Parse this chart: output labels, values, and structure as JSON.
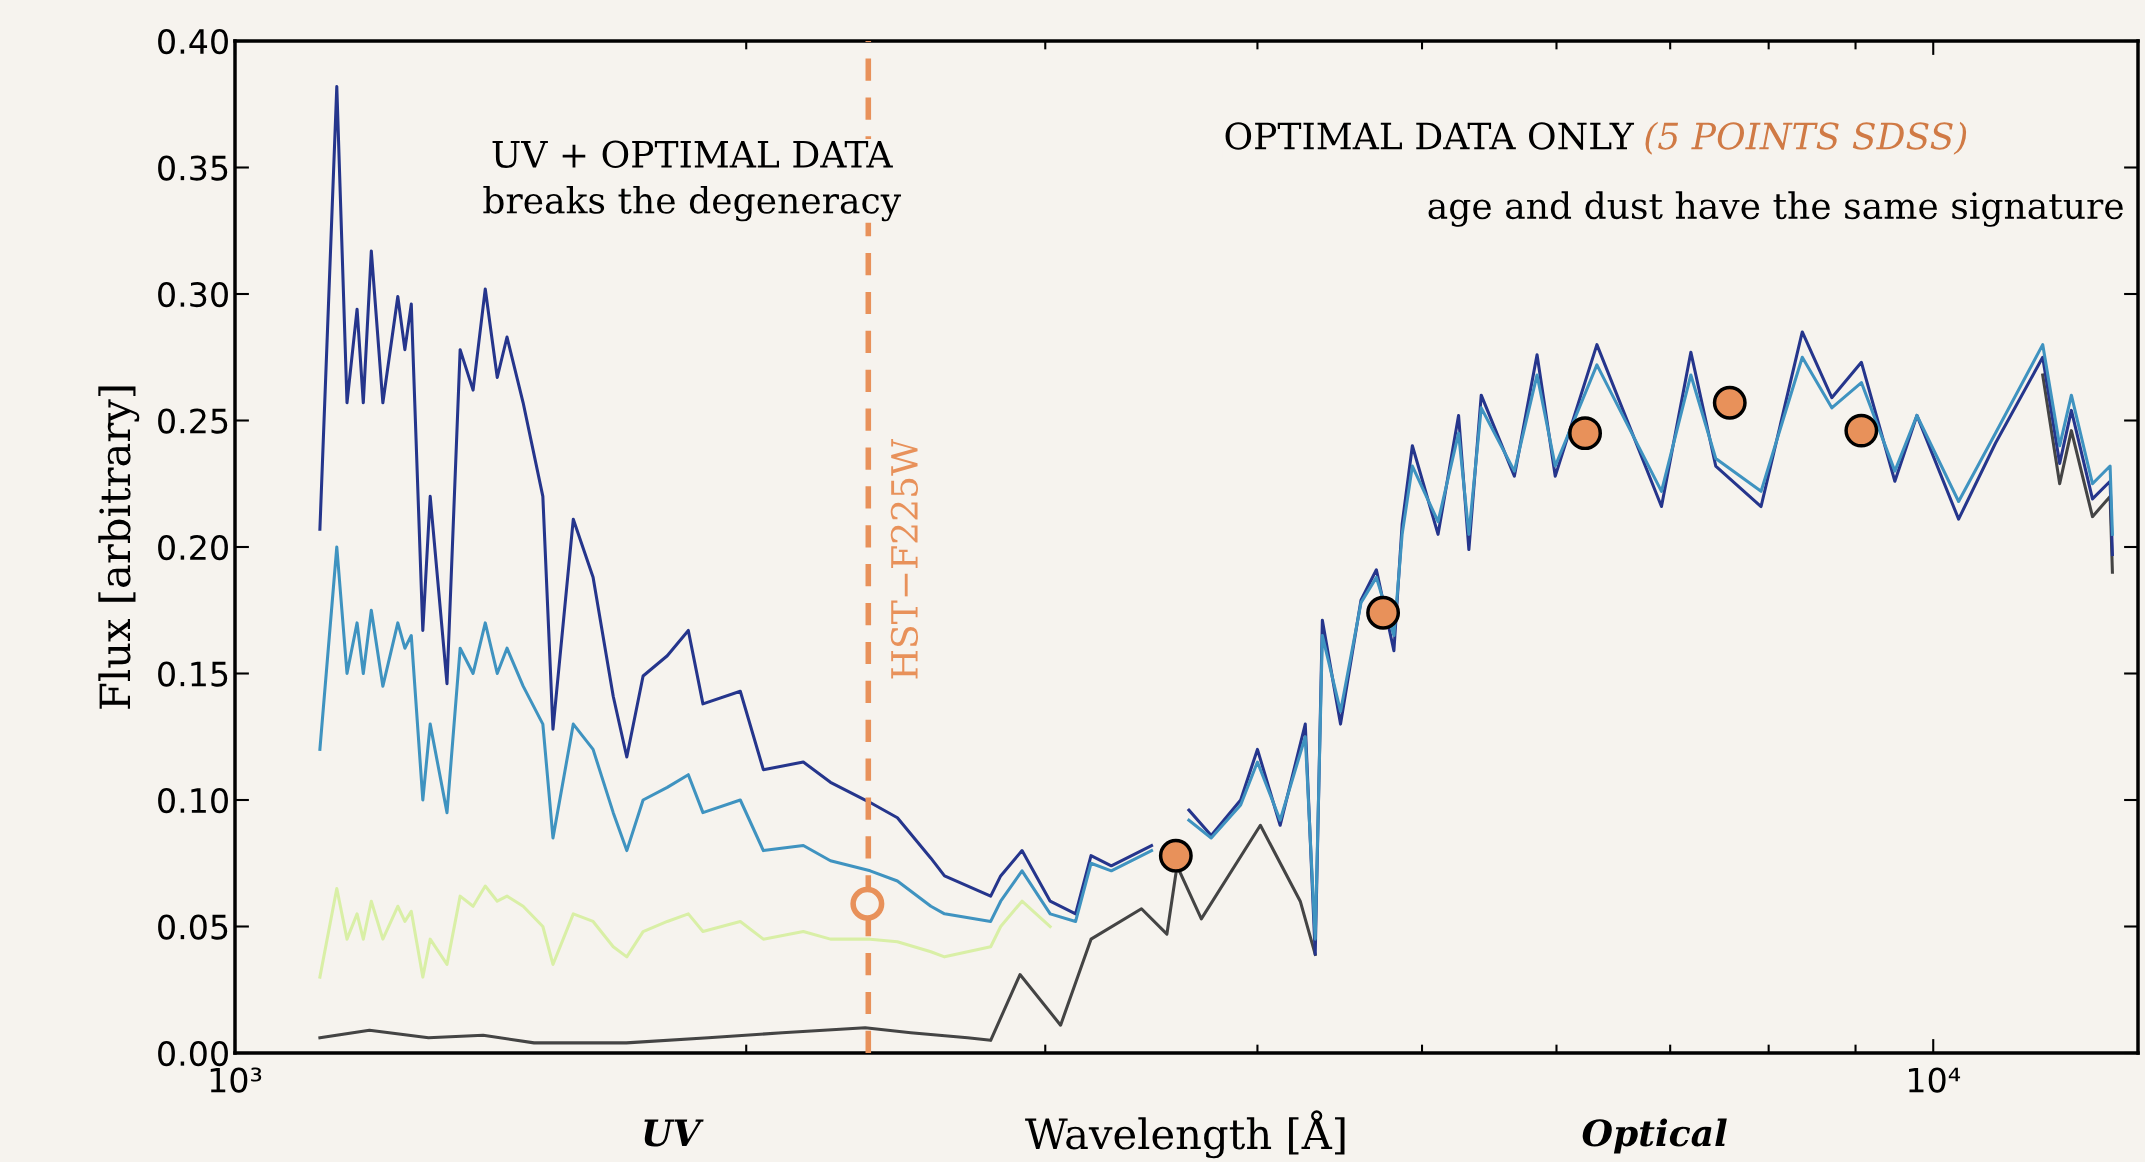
{
  "chart_data": {
    "type": "line",
    "xlabel": "Wavelength [Å]",
    "ylabel": "Flux [arbitrary]",
    "log": "x",
    "grid": false,
    "legend": false,
    "marker": "none",
    "line_style": "solid",
    "xlim": [
      1000,
      13200
    ],
    "xticks": [
      {
        "value": 1000,
        "label": "10³"
      },
      {
        "value": 10000,
        "label": "10⁴"
      }
    ],
    "ylim": [
      0,
      0.4
    ],
    "yticks": [
      {
        "value": 0,
        "label": "0.00"
      },
      {
        "value": 0.05,
        "label": "0.05"
      },
      {
        "value": 0.1,
        "label": "0.10"
      },
      {
        "value": 0.15,
        "label": "0.15"
      },
      {
        "value": 0.2,
        "label": "0.20"
      },
      {
        "value": 0.25,
        "label": "0.25"
      },
      {
        "value": 0.3,
        "label": "0.30"
      },
      {
        "value": 0.35,
        "label": "0.35"
      },
      {
        "value": 0.4,
        "label": "0.40"
      }
    ],
    "ref_lines": [
      {
        "axis": "x",
        "value": 2360,
        "label": "HST−F225W",
        "color": "#e8915a",
        "line_style": "dashed"
      }
    ],
    "annotations": [
      "UV + OPTIMAL DATA\nbreaks the degeneracy",
      "OPTIMAL DATA ONLY",
      "(5 POINTS SDSS)",
      "age and dust have the same signature",
      "UV",
      "Optical"
    ],
    "series": [
      {
        "color": "#d9efa6",
        "x": [
          1122,
          1148,
          1164,
          1180,
          1190,
          1203,
          1222,
          1247,
          1259,
          1270,
          1290,
          1303,
          1333,
          1357,
          1381,
          1404,
          1427,
          1446,
          1478,
          1518,
          1539,
          1582,
          1625,
          1670,
          1701,
          1739,
          1797,
          1849,
          1886,
          1984,
          2047,
          2161,
          2242,
          2366,
          2455,
          2569,
          2617,
          2786,
          2824,
          2907,
          3020
        ],
        "values": [
          0.03,
          0.065,
          0.045,
          0.055,
          0.045,
          0.06,
          0.045,
          0.058,
          0.052,
          0.056,
          0.03,
          0.045,
          0.035,
          0.062,
          0.058,
          0.066,
          0.06,
          0.062,
          0.058,
          0.05,
          0.035,
          0.055,
          0.052,
          0.042,
          0.038,
          0.048,
          0.052,
          0.055,
          0.048,
          0.052,
          0.045,
          0.048,
          0.045,
          0.045,
          0.044,
          0.04,
          0.038,
          0.042,
          0.05,
          0.06,
          0.05
        ]
      },
      {
        "color": "#444444",
        "x": [
          1122,
          1200,
          1300,
          1400,
          1500,
          1700,
          1900,
          2100,
          2350,
          2500,
          2700,
          2786,
          2899,
          3063,
          3192,
          3418,
          3538,
          3587,
          3707,
          4016,
          4239,
          4326,
          4400,
          11600,
          11870,
          12060,
          12410,
          12710,
          12750
        ],
        "values": [
          0.006,
          0.009,
          0.006,
          0.007,
          0.004,
          0.004,
          0.006,
          0.008,
          0.01,
          0.008,
          0.006,
          0.005,
          0.031,
          0.011,
          0.045,
          0.057,
          0.047,
          0.074,
          0.053,
          0.09,
          0.06,
          0.039,
          null,
          0.268,
          0.225,
          0.246,
          0.212,
          0.22,
          0.19
        ]
      },
      {
        "color": "#25358c",
        "x": [
          1122,
          1148,
          1164,
          1180,
          1190,
          1203,
          1222,
          1247,
          1259,
          1270,
          1290,
          1303,
          1333,
          1357,
          1381,
          1404,
          1427,
          1446,
          1478,
          1518,
          1539,
          1582,
          1625,
          1670,
          1701,
          1739,
          1797,
          1849,
          1886,
          1984,
          2047,
          2161,
          2242,
          2366,
          2455,
          2569,
          2617,
          2786,
          2824,
          2907,
          3020,
          3126,
          3192,
          3281,
          3465,
          3562,
          3645,
          3757,
          3910,
          4000,
          4125,
          4268,
          4326,
          4368,
          4477,
          4603,
          4700,
          4813,
          4867,
          4935,
          5110,
          5254,
          5328,
          5418,
          5667,
          5844,
          5990,
          6338,
          6918,
          7199,
          7446,
          7918,
          8373,
          8715,
          9072,
          9493,
          9781,
          10350,
          10880,
          11600,
          11870,
          12060,
          12410,
          12710,
          12750
        ],
        "values": [
          0.207,
          0.382,
          0.257,
          0.294,
          0.257,
          0.317,
          0.257,
          0.299,
          0.278,
          0.296,
          0.167,
          0.22,
          0.146,
          0.278,
          0.262,
          0.302,
          0.267,
          0.283,
          0.257,
          0.22,
          0.128,
          0.211,
          0.188,
          0.141,
          0.117,
          0.149,
          0.157,
          0.167,
          0.138,
          0.143,
          0.112,
          0.115,
          0.107,
          0.099,
          0.093,
          0.077,
          0.07,
          0.062,
          0.07,
          0.08,
          0.06,
          0.055,
          0.078,
          0.074,
          0.082,
          null,
          0.096,
          0.086,
          0.1,
          0.12,
          0.09,
          0.13,
          0.039,
          0.171,
          0.13,
          0.179,
          0.191,
          0.159,
          0.209,
          0.24,
          0.205,
          0.252,
          0.199,
          0.26,
          0.228,
          0.276,
          0.228,
          0.28,
          0.216,
          0.277,
          0.232,
          0.216,
          0.285,
          0.259,
          0.273,
          0.226,
          0.252,
          0.211,
          0.241,
          0.275,
          0.233,
          0.254,
          0.219,
          0.226,
          0.197
        ]
      },
      {
        "color": "#3f93c0",
        "x": [
          1122,
          1148,
          1164,
          1180,
          1190,
          1203,
          1222,
          1247,
          1259,
          1270,
          1290,
          1303,
          1333,
          1357,
          1381,
          1404,
          1427,
          1446,
          1478,
          1518,
          1539,
          1582,
          1625,
          1670,
          1701,
          1739,
          1797,
          1849,
          1886,
          1984,
          2047,
          2161,
          2242,
          2366,
          2455,
          2569,
          2617,
          2786,
          2824,
          2907,
          3020,
          3126,
          3192,
          3281,
          3465,
          3562,
          3645,
          3757,
          3910,
          4000,
          4125,
          4268,
          4326,
          4368,
          4477,
          4603,
          4700,
          4813,
          4867,
          4935,
          5110,
          5254,
          5328,
          5418,
          5667,
          5844,
          5990,
          6338,
          6918,
          7199,
          7446,
          7918,
          8373,
          8715,
          9072,
          9493,
          9781,
          10350,
          10880,
          11600,
          11870,
          12060,
          12410,
          12710,
          12750
        ],
        "values": [
          0.12,
          0.2,
          0.15,
          0.17,
          0.15,
          0.175,
          0.145,
          0.17,
          0.16,
          0.165,
          0.1,
          0.13,
          0.095,
          0.16,
          0.15,
          0.17,
          0.15,
          0.16,
          0.145,
          0.13,
          0.085,
          0.13,
          0.12,
          0.095,
          0.08,
          0.1,
          0.105,
          0.11,
          0.095,
          0.1,
          0.08,
          0.082,
          0.076,
          0.072,
          0.068,
          0.058,
          0.055,
          0.052,
          0.06,
          0.072,
          0.055,
          0.052,
          0.075,
          0.072,
          0.08,
          null,
          0.092,
          0.085,
          0.098,
          0.115,
          0.092,
          0.125,
          0.045,
          0.165,
          0.135,
          0.178,
          0.188,
          0.165,
          0.205,
          0.232,
          0.21,
          0.245,
          0.205,
          0.255,
          0.23,
          0.268,
          0.232,
          0.272,
          0.222,
          0.268,
          0.235,
          0.222,
          0.275,
          0.255,
          0.265,
          0.23,
          0.252,
          0.218,
          0.245,
          0.28,
          0.24,
          0.26,
          0.225,
          0.232,
          0.205
        ]
      },
      {
        "type": "scatter",
        "marker": "circle",
        "color": "#e8915a",
        "x": [
          2357
        ],
        "values": [
          0.059
        ]
      },
      {
        "type": "scatter",
        "marker": "circle",
        "color": "#e8915a",
        "x": [
          3581,
          4743,
          6237,
          7589,
          9071
        ],
        "values": [
          0.078,
          0.174,
          0.245,
          0.257,
          0.246
        ]
      }
    ]
  }
}
